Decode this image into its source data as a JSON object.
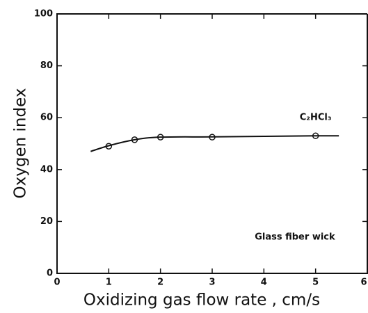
{
  "chart_data": {
    "type": "line",
    "xlabel": "Oxidizing gas flow rate , cm/s",
    "ylabel": "Oxygen index",
    "xlim": [
      0,
      6
    ],
    "xticks": [
      0,
      1,
      2,
      3,
      4,
      5,
      6
    ],
    "ylim": [
      0,
      100
    ],
    "yticks": [
      0,
      20,
      40,
      60,
      80,
      100
    ],
    "color": "#111111",
    "series": [
      {
        "x": [
          1,
          1.5,
          2,
          3,
          5
        ],
        "values": [
          49,
          51.5,
          52.5,
          52.5,
          53
        ],
        "marker": "circle",
        "line": false
      },
      {
        "x": [
          0.65,
          1,
          1.5,
          2,
          3,
          4,
          5,
          5.45
        ],
        "values": [
          47,
          49.2,
          51.5,
          52.5,
          52.6,
          52.8,
          53,
          53
        ],
        "marker": "none",
        "line": true
      }
    ],
    "annotations": [
      {
        "text": "C₂HCl₃",
        "x": 5,
        "y": 60
      },
      {
        "text": "Glass fiber wick",
        "x": 4.6,
        "y": 14
      }
    ]
  }
}
